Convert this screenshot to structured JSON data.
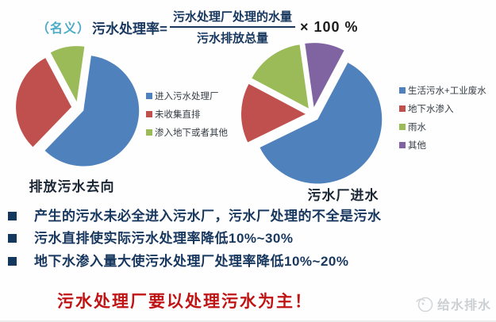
{
  "formula": {
    "prefix": "（名义）",
    "label": "污水处理率=",
    "numerator": "污水处理厂处理的水量",
    "denominator": "污水排放总量",
    "multiplier": "× 100 %"
  },
  "chart_data": [
    {
      "type": "pie",
      "title": "排放污水去向",
      "exploded": true,
      "start_angle": 8,
      "legend_position": "right",
      "labels": [
        "进入污水处理厂",
        "未收集直排",
        "渗入地下或者其他"
      ],
      "values": [
        60,
        30,
        10
      ],
      "slices": [
        {
          "label": "进入污水处理厂",
          "value": 60,
          "color": "#4F81BD"
        },
        {
          "label": "未收集直排",
          "value": 30,
          "color": "#C0504D"
        },
        {
          "label": "渗入地下或者其他",
          "value": 10,
          "color": "#9BBB59"
        }
      ]
    },
    {
      "type": "pie",
      "title": "污水厂进水",
      "exploded": true,
      "start_angle": 28,
      "legend_position": "right",
      "labels": [
        "生活污水+工业废水",
        "地下水渗入",
        "雨水",
        "其他"
      ],
      "values": [
        60,
        15,
        15,
        10
      ],
      "slices": [
        {
          "label": "生活污水+工业废水",
          "value": 60,
          "color": "#4F81BD"
        },
        {
          "label": "地下水渗入",
          "value": 15,
          "color": "#C0504D"
        },
        {
          "label": "雨水",
          "value": 15,
          "color": "#9BBB59"
        },
        {
          "label": "其他",
          "value": 10,
          "color": "#8064A2"
        }
      ]
    }
  ],
  "bullets": [
    "产生的污水未必全进入污水厂，污水厂处理的不全是污水",
    "污水直排使实际污水处理率降低10%~30%",
    "地下水渗入量大使污水处理厂处理率降低10%~20%"
  ],
  "footer": {
    "slogan": "污水处理厂要以处理污水为主！",
    "watermark": "给水排水"
  },
  "colors": {
    "navy": "#17375E",
    "teal": "#4BACC6",
    "slogan_red": "#C01414",
    "watermark_gray": "#CDD0D3",
    "pie_blue": "#4F81BD",
    "pie_red": "#C0504D",
    "pie_green": "#9BBB59",
    "pie_purple": "#8064A2"
  }
}
